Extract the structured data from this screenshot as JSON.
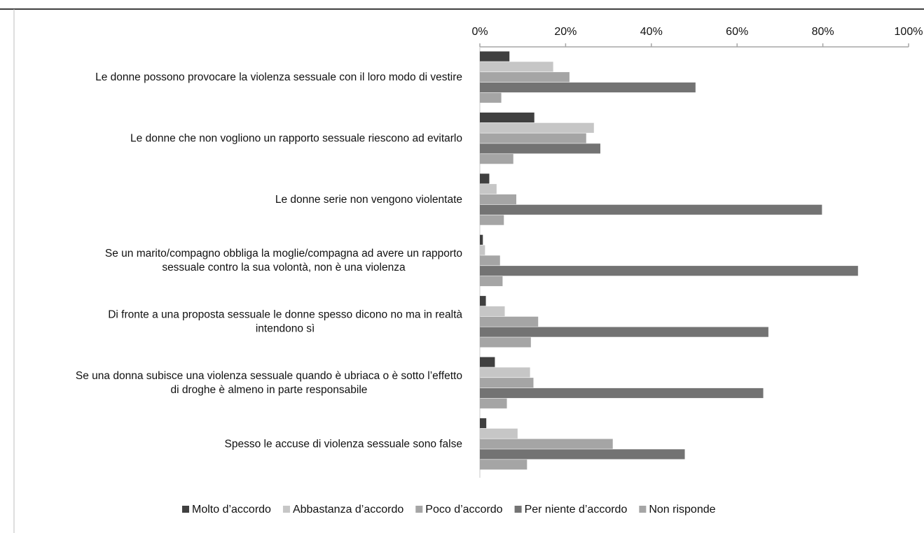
{
  "chart_data": {
    "type": "bar",
    "orientation": "horizontal",
    "x_ticks": [
      "0%",
      "20%",
      "40%",
      "60%",
      "80%",
      "100%"
    ],
    "xlim": [
      0,
      100
    ],
    "x_axis_position": "top",
    "grid": false,
    "legend_position": "bottom",
    "categories": [
      [
        "Le donne possono provocare la violenza sessuale con il loro modo di vestire"
      ],
      [
        "Le donne che non vogliono un rapporto sessuale riescono ad evitarlo"
      ],
      [
        "Le donne serie non vengono violentate"
      ],
      [
        "Se un marito/compagno obbliga la moglie/compagna ad avere un rapporto",
        "sessuale contro la sua volontà, non è una violenza"
      ],
      [
        "Di fronte a una proposta sessuale le donne spesso dicono no ma in realtà",
        "intendono sì"
      ],
      [
        "Se una donna subisce una violenza sessuale quando è ubriaca o è sotto l’effetto",
        "di droghe è almeno in parte responsabile"
      ],
      [
        "Spesso le accuse di violenza sessuale sono false"
      ]
    ],
    "series": [
      {
        "name": "Molto d’accordo",
        "color": "#404040",
        "values": [
          6.9,
          12.7,
          2.2,
          0.7,
          1.4,
          3.5,
          1.5
        ]
      },
      {
        "name": "Abbastanza d’accordo",
        "color": "#c6c6c6",
        "values": [
          17.1,
          26.6,
          3.9,
          1.2,
          5.8,
          11.7,
          8.8
        ]
      },
      {
        "name": "Poco d’accordo",
        "color": "#a5a5a5",
        "values": [
          20.9,
          24.8,
          8.5,
          4.7,
          13.6,
          12.5,
          31.0
        ]
      },
      {
        "name": "Per niente d’accordo",
        "color": "#737373",
        "values": [
          50.3,
          28.1,
          79.8,
          88.2,
          67.3,
          66.1,
          47.8
        ]
      },
      {
        "name": "Non risponde",
        "color": "#a5a5a5",
        "values": [
          5.0,
          7.8,
          5.6,
          5.3,
          11.9,
          6.3,
          11.0
        ]
      }
    ]
  }
}
